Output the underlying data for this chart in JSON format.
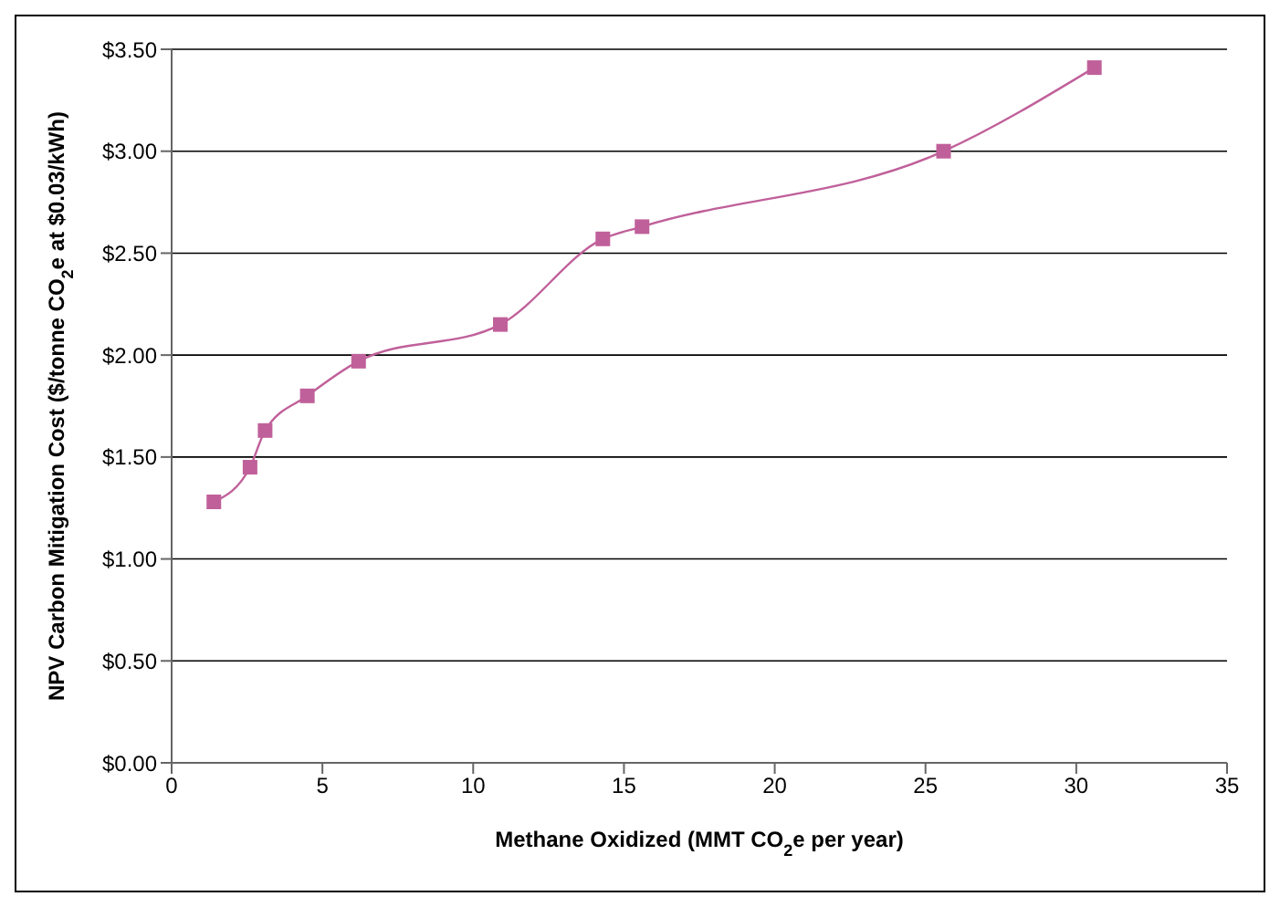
{
  "chart_data": {
    "type": "line",
    "xlabel": "Methane Oxidized (MMT CO$_{2}$e per year)",
    "ylabel": "NPV Carbon Mitigation Cost ($/tonne CO$_{2}$e at $0.03/kWh)",
    "x": [
      1.4,
      2.6,
      3.1,
      4.5,
      6.2,
      10.9,
      14.3,
      15.6,
      25.6,
      30.6
    ],
    "series": [
      {
        "color": "#c0609a",
        "values": [
          1.28,
          1.45,
          1.63,
          1.8,
          1.97,
          2.15,
          2.57,
          2.63,
          3.0,
          3.41
        ]
      }
    ],
    "xlim": [
      0,
      35
    ],
    "xticks": [
      0,
      5,
      10,
      15,
      20,
      25,
      30,
      35
    ],
    "ylim": [
      0,
      3.5
    ],
    "yticks": [
      {
        "value": 0,
        "label": "$0.00"
      },
      {
        "value": 0.5,
        "label": "$0.50"
      },
      {
        "value": 1,
        "label": "$1.00"
      },
      {
        "value": 1.5,
        "label": "$1.50"
      },
      {
        "value": 2,
        "label": "$2.00"
      },
      {
        "value": 2.5,
        "label": "$2.50"
      },
      {
        "value": 3,
        "label": "$3.00"
      },
      {
        "value": 3.5,
        "label": "$3.50"
      }
    ],
    "grid": "y",
    "legend": false,
    "marker": "square",
    "line_style": "solid"
  }
}
